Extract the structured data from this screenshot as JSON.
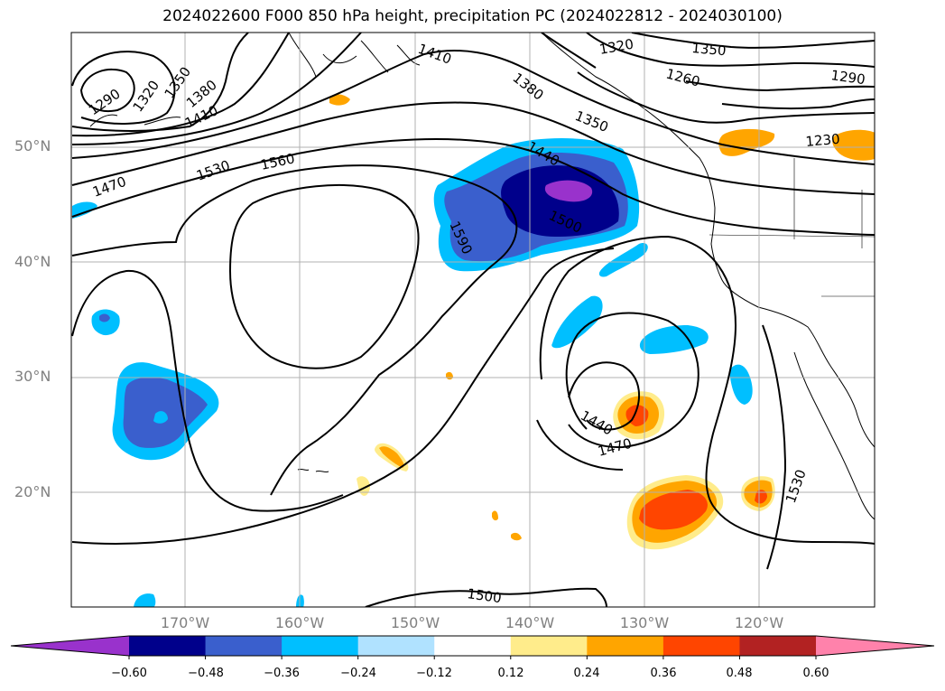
{
  "title": "2024022600 F000 850 hPa height, precipitation PC (2024022812 - 2024030100)",
  "lat_labels": [
    "50°N",
    "40°N",
    "30°N",
    "20°N"
  ],
  "lon_labels": [
    "170°W",
    "160°W",
    "150°W",
    "140°W",
    "130°W",
    "120°W"
  ],
  "contour_labels": [
    "1290",
    "1320",
    "1350",
    "1380",
    "1410",
    "1410",
    "1380",
    "1350",
    "1320",
    "1350",
    "1260",
    "1290",
    "1230",
    "1440",
    "1470",
    "1530",
    "1560",
    "1500",
    "1590",
    "1440",
    "1470",
    "1530",
    "1500"
  ],
  "colorbar": {
    "ticks": [
      "−0.60",
      "−0.48",
      "−0.36",
      "−0.24",
      "−0.12",
      "0.12",
      "0.24",
      "0.36",
      "0.48",
      "0.60"
    ],
    "colors": [
      "#9932cc",
      "#00008b",
      "#3a5fcd",
      "#00bfff",
      "#b0e2ff",
      "#ffffff",
      "#ffec8b",
      "#ffa500",
      "#ff4500",
      "#b22222",
      "#ff82ab"
    ]
  }
}
